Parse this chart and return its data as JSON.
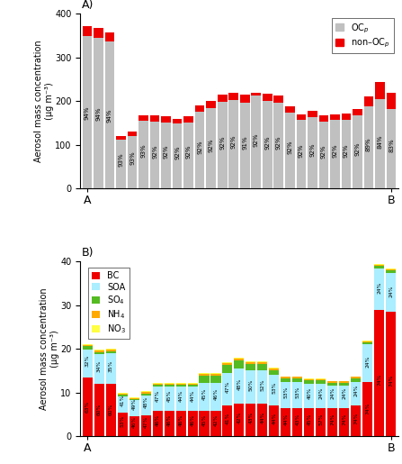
{
  "panel_A": {
    "title": "A)",
    "ylabel": "Aerosol mass concentration\n(μg m⁻³)",
    "ylim": [
      0,
      400
    ],
    "yticks": [
      0,
      100,
      200,
      300,
      400
    ],
    "oc_values": [
      350,
      345,
      337,
      112,
      121,
      155,
      154,
      152,
      148,
      152,
      175,
      185,
      198,
      202,
      196,
      213,
      200,
      196,
      174,
      157,
      163,
      154,
      157,
      158,
      167,
      188,
      204,
      183
    ],
    "total_values": [
      372,
      367,
      358,
      120,
      130,
      168,
      167,
      165,
      160,
      165,
      190,
      200,
      215,
      220,
      216,
      220,
      217,
      212,
      189,
      170,
      177,
      167,
      170,
      172,
      182,
      211,
      243,
      220
    ],
    "pct_labels": [
      "94%",
      "94%",
      "94%",
      "93%",
      "93%",
      "93%",
      "92%",
      "92%",
      "92%",
      "92%",
      "92%",
      "92%",
      "92%",
      "92%",
      "91%",
      "92%",
      "92%",
      "92%",
      "92%",
      "92%",
      "92%",
      "92%",
      "92%",
      "92%",
      "92%",
      "89%",
      "84%",
      "83%"
    ],
    "oc_color": "#c0c0c0",
    "nonoc_color": "#ee0000",
    "legend_labels": [
      "OC$_p$",
      "non–OC$_p$"
    ]
  },
  "panel_B": {
    "title": "B)",
    "ylabel": "Aerosol mass concentration\n(μg m⁻³)",
    "ylim": [
      0,
      40
    ],
    "yticks": [
      0,
      10,
      20,
      30,
      40
    ],
    "bc_values": [
      13.5,
      12.0,
      12.0,
      5.3,
      4.6,
      4.8,
      5.8,
      5.8,
      5.8,
      5.8,
      5.8,
      5.8,
      7.0,
      7.5,
      7.5,
      7.5,
      7.0,
      6.5,
      6.5,
      6.5,
      6.5,
      6.5,
      6.5,
      7.0,
      12.5,
      29.0,
      28.5
    ],
    "soa_values": [
      6.4,
      6.8,
      7.0,
      3.8,
      3.6,
      4.5,
      5.5,
      5.5,
      5.5,
      5.5,
      6.5,
      6.5,
      7.5,
      8.0,
      7.5,
      7.5,
      7.0,
      6.0,
      6.0,
      5.5,
      5.5,
      5.0,
      5.0,
      5.5,
      8.5,
      9.5,
      9.0
    ],
    "so4_values": [
      0.7,
      0.5,
      0.5,
      0.4,
      0.3,
      0.5,
      0.5,
      0.5,
      0.5,
      0.5,
      1.5,
      1.5,
      1.8,
      1.8,
      1.5,
      1.5,
      1.2,
      0.8,
      0.8,
      0.8,
      0.8,
      0.8,
      0.8,
      0.8,
      0.5,
      0.5,
      0.5
    ],
    "nh4_values": [
      0.3,
      0.3,
      0.3,
      0.2,
      0.2,
      0.3,
      0.3,
      0.3,
      0.3,
      0.3,
      0.4,
      0.4,
      0.4,
      0.4,
      0.4,
      0.4,
      0.3,
      0.25,
      0.25,
      0.25,
      0.25,
      0.25,
      0.25,
      0.25,
      0.3,
      0.3,
      0.3
    ],
    "no3_values": [
      0.2,
      0.2,
      0.2,
      0.15,
      0.15,
      0.2,
      0.2,
      0.2,
      0.2,
      0.2,
      0.25,
      0.25,
      0.25,
      0.25,
      0.25,
      0.25,
      0.2,
      0.15,
      0.15,
      0.15,
      0.15,
      0.15,
      0.15,
      0.15,
      0.2,
      0.2,
      0.2
    ],
    "bc_pct_labels": [
      "63%",
      "60%",
      "60%",
      "53%",
      "46%",
      "47%",
      "46%",
      "46%",
      "46%",
      "46%",
      "45%",
      "42%",
      "41%",
      "42%",
      "43%",
      "44%",
      "44%",
      "44%",
      "43%",
      "45%",
      "57%",
      "74%",
      "74%",
      "74%",
      "74%",
      "74%",
      "74%"
    ],
    "soa_pct_labels": [
      "32%",
      "34%",
      "35%",
      "41%",
      "49%",
      "48%",
      "47%",
      "45%",
      "44%",
      "44%",
      "45%",
      "46%",
      "47%",
      "48%",
      "50%",
      "52%",
      "53%",
      "53%",
      "53%",
      "40%",
      "24%",
      "24%",
      "24%",
      "24%",
      "24%",
      "24%",
      "24%"
    ],
    "bc_color": "#ee0000",
    "soa_color": "#aaeeff",
    "so4_color": "#55bb22",
    "nh4_color": "#ffaa00",
    "no3_color": "#ffff44",
    "legend_labels": [
      "BC",
      "SOA",
      "SO$_4$",
      "NH$_4$",
      "NO$_3$"
    ]
  },
  "n_bars_A": 28,
  "n_bars_B": 27
}
